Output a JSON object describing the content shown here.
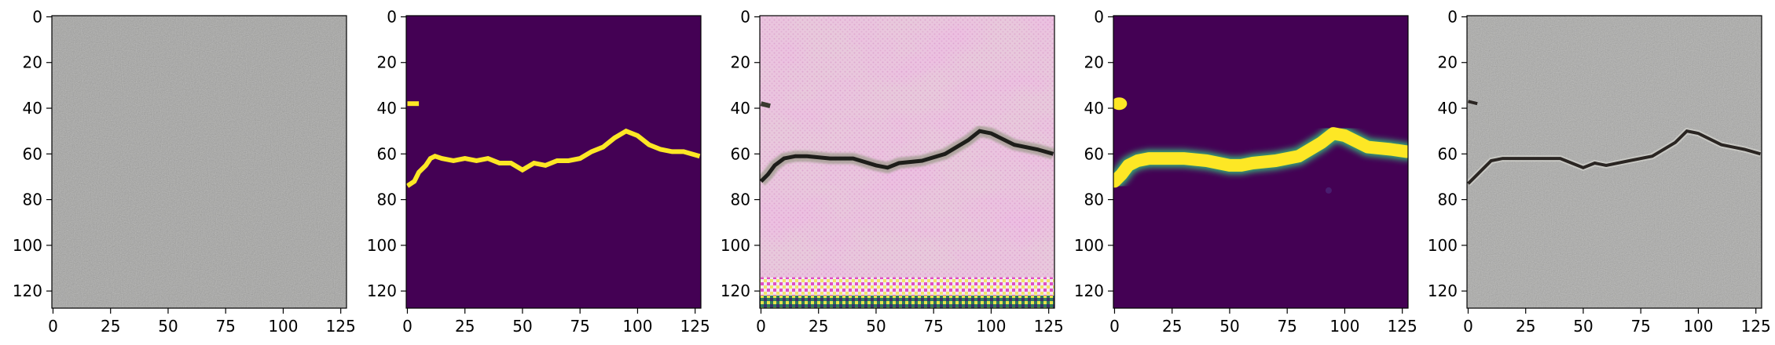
{
  "chart_data": [
    {
      "type": "heatmap",
      "panel": "input-image",
      "content": "grey asphalt/concrete texture, no crack visible",
      "xlim": [
        0,
        127
      ],
      "ylim": [
        127,
        0
      ],
      "xticks": [
        0,
        25,
        50,
        75,
        100,
        125
      ],
      "yticks": [
        0,
        20,
        40,
        60,
        80,
        100,
        120
      ],
      "colors": {
        "base": "#a3a3a1"
      }
    },
    {
      "type": "heatmap",
      "panel": "ground-truth-mask",
      "content": "binary crack mask (viridis)",
      "xlim": [
        0,
        127
      ],
      "ylim": [
        127,
        0
      ],
      "xticks": [
        0,
        25,
        50,
        75,
        100,
        125
      ],
      "yticks": [
        0,
        20,
        40,
        60,
        80,
        100,
        120
      ],
      "crack_x": [
        0,
        3,
        5,
        8,
        10,
        12,
        15,
        20,
        25,
        30,
        35,
        40,
        45,
        50,
        55,
        60,
        65,
        70,
        75,
        80,
        85,
        90,
        95,
        100,
        105,
        110,
        115,
        120,
        127
      ],
      "crack_y": [
        74,
        72,
        68,
        65,
        62,
        61,
        62,
        63,
        62,
        63,
        62,
        64,
        64,
        67,
        64,
        65,
        63,
        63,
        62,
        59,
        57,
        53,
        50,
        52,
        56,
        58,
        59,
        59,
        61
      ],
      "blob": {
        "x": [
          0,
          5
        ],
        "y": 38
      },
      "colors": {
        "background": "#440154",
        "crack": "#fde725"
      }
    },
    {
      "type": "heatmap",
      "panel": "generated-image",
      "content": "synthesized crack on pink/white texture with colored artifact stripes at bottom",
      "xlim": [
        0,
        127
      ],
      "ylim": [
        127,
        0
      ],
      "xticks": [
        0,
        25,
        50,
        75,
        100,
        125
      ],
      "yticks": [
        0,
        20,
        40,
        60,
        80,
        100,
        120
      ],
      "colors": {
        "base": "#e8c9dc",
        "pink": "#d98cc4",
        "crack": "#1e1e1a"
      }
    },
    {
      "type": "heatmap",
      "panel": "predicted-mask",
      "content": "smooth predicted crack probability map (viridis)",
      "xlim": [
        0,
        127
      ],
      "ylim": [
        127,
        0
      ],
      "xticks": [
        0,
        25,
        50,
        75,
        100,
        125
      ],
      "yticks": [
        0,
        20,
        40,
        60,
        80,
        100,
        120
      ],
      "crack_x": [
        0,
        3,
        6,
        10,
        15,
        20,
        30,
        40,
        50,
        55,
        60,
        70,
        80,
        90,
        95,
        100,
        110,
        120,
        127
      ],
      "crack_y": [
        72,
        69,
        65,
        63,
        62,
        62,
        62,
        63,
        65,
        65,
        64,
        63,
        61,
        55,
        51,
        52,
        57,
        58,
        59
      ],
      "blob": {
        "x": [
          0,
          4
        ],
        "y": 38
      },
      "colors": {
        "background": "#440154",
        "crack": "#fde725",
        "edge": "#35b779"
      }
    },
    {
      "type": "heatmap",
      "panel": "composite-image",
      "content": "grey texture with dark crack pasted along mask",
      "xlim": [
        0,
        127
      ],
      "ylim": [
        127,
        0
      ],
      "xticks": [
        0,
        25,
        50,
        75,
        100,
        125
      ],
      "yticks": [
        0,
        20,
        40,
        60,
        80,
        100,
        120
      ],
      "crack_x": [
        0,
        3,
        6,
        10,
        15,
        20,
        30,
        40,
        45,
        50,
        55,
        60,
        70,
        80,
        90,
        95,
        100,
        110,
        115,
        120,
        127
      ],
      "crack_y": [
        73,
        70,
        67,
        63,
        62,
        62,
        62,
        62,
        64,
        66,
        64,
        65,
        63,
        61,
        55,
        50,
        51,
        56,
        57,
        58,
        60
      ],
      "colors": {
        "base": "#a9a9a7",
        "crack": "#2a2522"
      }
    }
  ]
}
